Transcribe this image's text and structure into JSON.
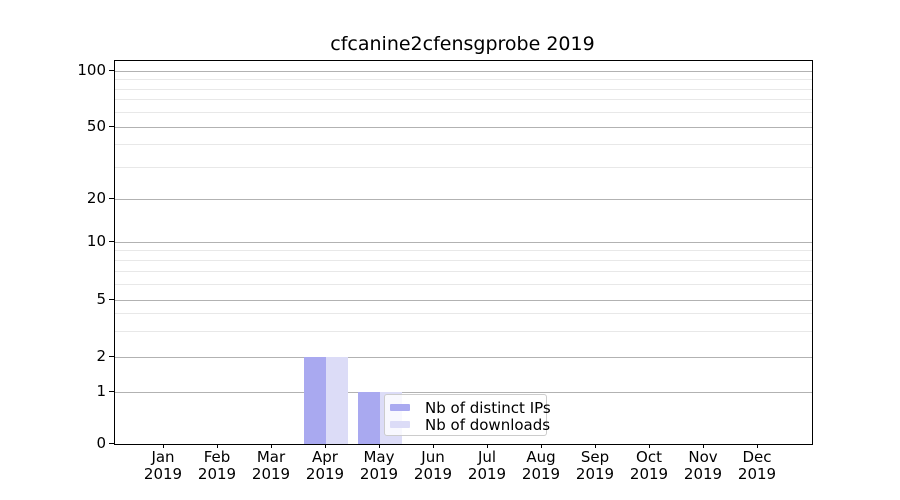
{
  "title": "cfcanine2cfensgprobe 2019",
  "chart_data": {
    "type": "bar",
    "title": "cfcanine2cfensgprobe 2019",
    "categories": [
      "Jan 2019",
      "Feb 2019",
      "Mar 2019",
      "Apr 2019",
      "May 2019",
      "Jun 2019",
      "Jul 2019",
      "Aug 2019",
      "Sep 2019",
      "Oct 2019",
      "Nov 2019",
      "Dec 2019"
    ],
    "x_tick_labels": [
      {
        "month": "Jan",
        "year": "2019"
      },
      {
        "month": "Feb",
        "year": "2019"
      },
      {
        "month": "Mar",
        "year": "2019"
      },
      {
        "month": "Apr",
        "year": "2019"
      },
      {
        "month": "May",
        "year": "2019"
      },
      {
        "month": "Jun",
        "year": "2019"
      },
      {
        "month": "Jul",
        "year": "2019"
      },
      {
        "month": "Aug",
        "year": "2019"
      },
      {
        "month": "Sep",
        "year": "2019"
      },
      {
        "month": "Oct",
        "year": "2019"
      },
      {
        "month": "Nov",
        "year": "2019"
      },
      {
        "month": "Dec",
        "year": "2019"
      }
    ],
    "series": [
      {
        "name": "Nb of distinct IPs",
        "color": "#a9a9f0",
        "values": [
          0,
          0,
          0,
          2,
          1,
          0,
          0,
          0,
          0,
          0,
          0,
          0
        ]
      },
      {
        "name": "Nb of downloads",
        "color": "#dcdcf7",
        "values": [
          0,
          0,
          0,
          2,
          1,
          0,
          0,
          0,
          0,
          0,
          0,
          0
        ]
      }
    ],
    "yscale": "symlog",
    "yticks": [
      0,
      1,
      2,
      5,
      10,
      20,
      50,
      100
    ],
    "yticks_minor": [
      3,
      4,
      6,
      7,
      8,
      9,
      30,
      40,
      60,
      70,
      80,
      90
    ],
    "ylim": [
      0,
      113
    ],
    "grid": "horizontal, major and minor, on",
    "legend_position": "lower center, inside plot",
    "colors": {
      "grid_major": "#b2b2b2",
      "grid_minor": "#e8e8e8",
      "spine": "#000000",
      "legend_border": "#cccccc"
    }
  }
}
